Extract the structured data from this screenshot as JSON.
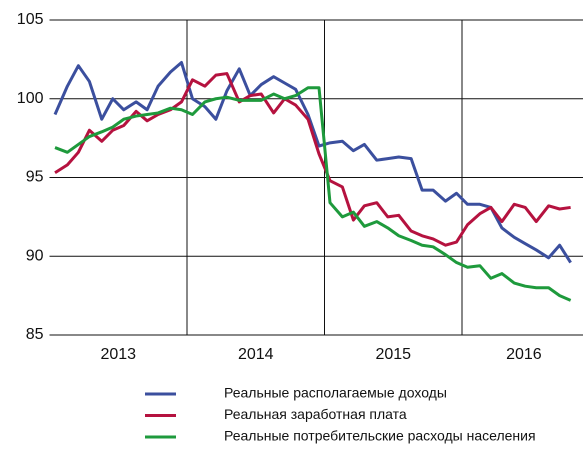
{
  "chart_data": {
    "type": "line",
    "x": [
      2013.04,
      2013.13,
      2013.21,
      2013.29,
      2013.38,
      2013.46,
      2013.54,
      2013.63,
      2013.71,
      2013.79,
      2013.88,
      2013.96,
      2014.04,
      2014.13,
      2014.21,
      2014.29,
      2014.38,
      2014.46,
      2014.54,
      2014.63,
      2014.71,
      2014.79,
      2014.88,
      2014.96,
      2015.04,
      2015.13,
      2015.21,
      2015.29,
      2015.38,
      2015.46,
      2015.54,
      2015.63,
      2015.71,
      2015.79,
      2015.88,
      2015.96,
      2016.04,
      2016.13,
      2016.21,
      2016.29,
      2016.38,
      2016.46,
      2016.54,
      2016.63,
      2016.71,
      2016.79
    ],
    "xlim": [
      2013,
      2016.88
    ],
    "xticks": [
      2014,
      2015,
      2016
    ],
    "xtick_labels": [
      {
        "value": 2013.5,
        "label": "2013"
      },
      {
        "value": 2014.5,
        "label": "2014"
      },
      {
        "value": 2015.5,
        "label": "2015"
      },
      {
        "value": 2016.45,
        "label": "2016"
      }
    ],
    "ylim": [
      85,
      105
    ],
    "yticks": [
      85,
      90,
      95,
      100,
      105
    ],
    "grid": true,
    "legend": "bottom",
    "series": [
      {
        "name": "Реальные располагаемые доходы",
        "color": "#3b4f9e",
        "values": [
          99.0,
          100.8,
          102.1,
          101.1,
          98.7,
          100.0,
          99.3,
          99.8,
          99.3,
          100.8,
          101.7,
          102.3,
          100.0,
          99.5,
          98.7,
          100.5,
          101.9,
          100.2,
          100.9,
          101.4,
          101.0,
          100.6,
          99.0,
          97.0,
          97.2,
          97.3,
          96.7,
          97.1,
          96.1,
          96.2,
          96.3,
          96.2,
          94.2,
          94.2,
          93.5,
          94.0,
          93.3,
          93.3,
          93.1,
          91.8,
          91.2,
          90.8,
          90.4,
          89.9,
          90.7,
          89.6
        ]
      },
      {
        "name": "Реальная заработная плата",
        "color": "#b5123f",
        "values": [
          95.3,
          95.8,
          96.6,
          98.0,
          97.3,
          98.0,
          98.3,
          99.2,
          98.6,
          99.0,
          99.3,
          99.8,
          101.2,
          100.8,
          101.5,
          101.6,
          99.8,
          100.2,
          100.3,
          99.1,
          100.0,
          99.6,
          98.7,
          96.5,
          94.8,
          94.4,
          92.3,
          93.2,
          93.4,
          92.5,
          92.6,
          91.6,
          91.3,
          91.1,
          90.7,
          90.9,
          92.0,
          92.7,
          93.1,
          92.2,
          93.3,
          93.1,
          92.2,
          93.2,
          93.0,
          93.1
        ]
      },
      {
        "name": "Реальные потребительские расходы населения",
        "color": "#1e9a3c",
        "values": [
          96.9,
          96.6,
          97.1,
          97.6,
          97.9,
          98.2,
          98.7,
          98.9,
          99.0,
          99.1,
          99.4,
          99.3,
          99.0,
          99.8,
          100.0,
          100.1,
          99.9,
          99.9,
          99.9,
          100.3,
          100.0,
          100.2,
          100.7,
          100.7,
          93.4,
          92.5,
          92.8,
          91.9,
          92.2,
          91.8,
          91.3,
          91.0,
          90.7,
          90.6,
          90.1,
          89.6,
          89.3,
          89.4,
          88.6,
          88.9,
          88.3,
          88.1,
          88.0,
          88.0,
          87.5,
          87.2
        ]
      }
    ]
  }
}
